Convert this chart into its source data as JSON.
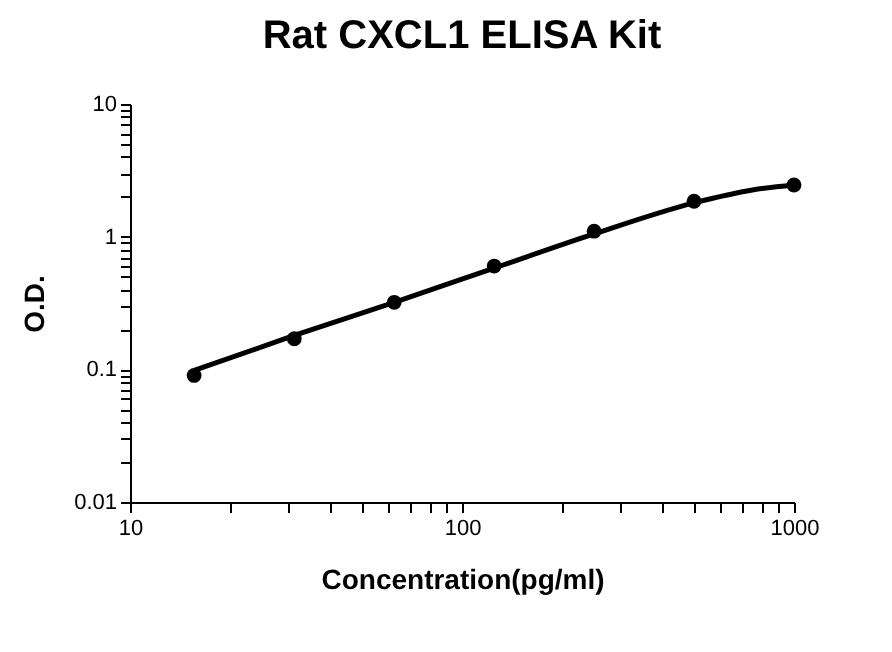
{
  "chart_data": {
    "type": "scatter",
    "title": "Rat CXCL1 ELISA Kit",
    "xlabel": "Concentration(pg/ml)",
    "ylabel": "O.D.",
    "log": "xy",
    "grid": false,
    "marker": "circle",
    "xlim": [
      10,
      1000
    ],
    "ylim": [
      0.01,
      10
    ],
    "xticks": [
      10,
      {
        "value": 20,
        "label": null
      },
      {
        "value": 30,
        "label": null
      },
      {
        "value": 40,
        "label": null
      },
      {
        "value": 50,
        "label": null
      },
      {
        "value": 60,
        "label": null
      },
      {
        "value": 70,
        "label": null
      },
      {
        "value": 80,
        "label": null
      },
      {
        "value": 90,
        "label": null
      },
      100,
      {
        "value": 200,
        "label": null
      },
      {
        "value": 300,
        "label": null
      },
      {
        "value": 400,
        "label": null
      },
      {
        "value": 500,
        "label": null
      },
      {
        "value": 600,
        "label": null
      },
      {
        "value": 700,
        "label": null
      },
      {
        "value": 800,
        "label": null
      },
      {
        "value": 900,
        "label": null
      },
      1000
    ],
    "yticks": [
      0.01,
      {
        "value": 0.02,
        "label": null
      },
      {
        "value": 0.03,
        "label": null
      },
      {
        "value": 0.04,
        "label": null
      },
      {
        "value": 0.05,
        "label": null
      },
      {
        "value": 0.06,
        "label": null
      },
      {
        "value": 0.07,
        "label": null
      },
      {
        "value": 0.08,
        "label": null
      },
      {
        "value": 0.09,
        "label": null
      },
      0.1,
      {
        "value": 0.2,
        "label": null
      },
      {
        "value": 0.3,
        "label": null
      },
      {
        "value": 0.4,
        "label": null
      },
      {
        "value": 0.5,
        "label": null
      },
      {
        "value": 0.6,
        "label": null
      },
      {
        "value": 0.7,
        "label": null
      },
      {
        "value": 0.8,
        "label": null
      },
      {
        "value": 0.9,
        "label": null
      },
      1,
      {
        "value": 2,
        "label": null
      },
      {
        "value": 3,
        "label": null
      },
      {
        "value": 4,
        "label": null
      },
      {
        "value": 5,
        "label": null
      },
      {
        "value": 6,
        "label": null
      },
      {
        "value": 7,
        "label": null
      },
      {
        "value": 8,
        "label": null
      },
      {
        "value": 9,
        "label": null
      },
      10
    ],
    "series": [
      {
        "color": "#000000",
        "x": [
          15.6,
          31.25,
          62.5,
          125,
          250,
          500,
          1000
        ],
        "values": [
          0.09,
          0.17,
          0.32,
          0.6,
          1.1,
          1.85,
          2.45
        ]
      },
      {
        "type": "line",
        "color": "#000000",
        "marker": "none",
        "line_style": "solid",
        "x": [
          15.6,
          31.25,
          62.5,
          125,
          250,
          500,
          750,
          1000
        ],
        "values": [
          0.098,
          0.18,
          0.32,
          0.58,
          1.05,
          1.8,
          2.25,
          2.45
        ]
      }
    ]
  }
}
